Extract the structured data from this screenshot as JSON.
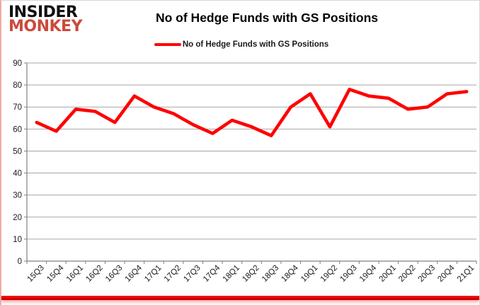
{
  "logo": {
    "line1": "INSIDER",
    "line2": "MONKEY"
  },
  "header": {
    "title": "No of Hedge Funds with GS Positions"
  },
  "legend": {
    "label": "No of Hedge Funds with GS Positions"
  },
  "colors": {
    "series": "#ff0000",
    "grid": "#a6a6a6",
    "axis": "#7f7f7f",
    "tick_label": "#1a1a1a",
    "logo_black": "#111111",
    "logo_red": "#cb4a3c",
    "bottom_bar": "#e00000"
  },
  "chart_data": {
    "type": "line",
    "title": "No of Hedge Funds with GS Positions",
    "categories": [
      "15Q3",
      "15Q4",
      "16Q1",
      "16Q2",
      "16Q3",
      "16Q4",
      "17Q1",
      "17Q2",
      "17Q3",
      "17Q4",
      "18Q1",
      "18Q2",
      "18Q3",
      "18Q4",
      "19Q1",
      "19Q2",
      "19Q3",
      "19Q4",
      "20Q1",
      "20Q2",
      "20Q3",
      "20Q4",
      "21Q1"
    ],
    "series": [
      {
        "name": "No of Hedge Funds with GS Positions",
        "color": "#ff0000",
        "values": [
          63,
          59,
          69,
          68,
          63,
          75,
          70,
          67,
          62,
          58,
          64,
          61,
          57,
          70,
          76,
          61,
          78,
          75,
          74,
          69,
          70,
          76,
          77
        ]
      }
    ],
    "xlabel": "",
    "ylabel": "",
    "ylim": [
      0,
      90
    ],
    "y_tick_step": 10,
    "grid": "horizontal",
    "legend_position": "top-center"
  }
}
